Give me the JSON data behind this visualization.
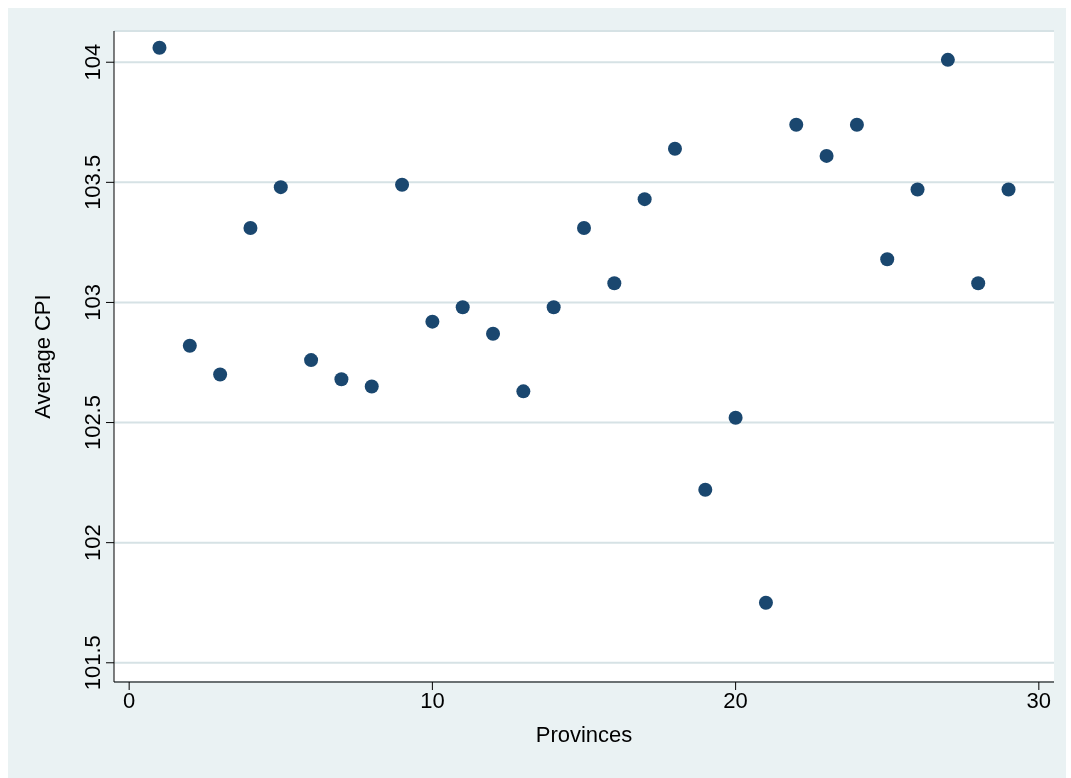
{
  "chart_data": {
    "type": "scatter",
    "xlabel": "Provinces",
    "ylabel": "Average CPI",
    "x": [
      1,
      2,
      3,
      4,
      5,
      6,
      7,
      8,
      9,
      10,
      11,
      12,
      13,
      14,
      15,
      16,
      17,
      18,
      19,
      20,
      21,
      22,
      23,
      24,
      25,
      26,
      27,
      28,
      29
    ],
    "values": [
      104.06,
      102.82,
      102.7,
      103.31,
      103.48,
      102.76,
      102.68,
      102.65,
      103.49,
      102.92,
      102.98,
      102.87,
      102.63,
      102.98,
      103.31,
      103.08,
      103.43,
      103.64,
      102.22,
      102.52,
      101.75,
      103.74,
      103.61,
      103.74,
      103.18,
      103.47,
      104.01,
      103.08,
      103.47
    ],
    "color": "#1a476f",
    "marker": "circle",
    "xlim": [
      -0.5,
      30.5
    ],
    "xticks": [
      0,
      10,
      20,
      30
    ],
    "ylim": [
      101.42,
      104.13
    ],
    "yticks": [
      101.5,
      102,
      102.5,
      103,
      103.5,
      104
    ],
    "grid": "y"
  }
}
